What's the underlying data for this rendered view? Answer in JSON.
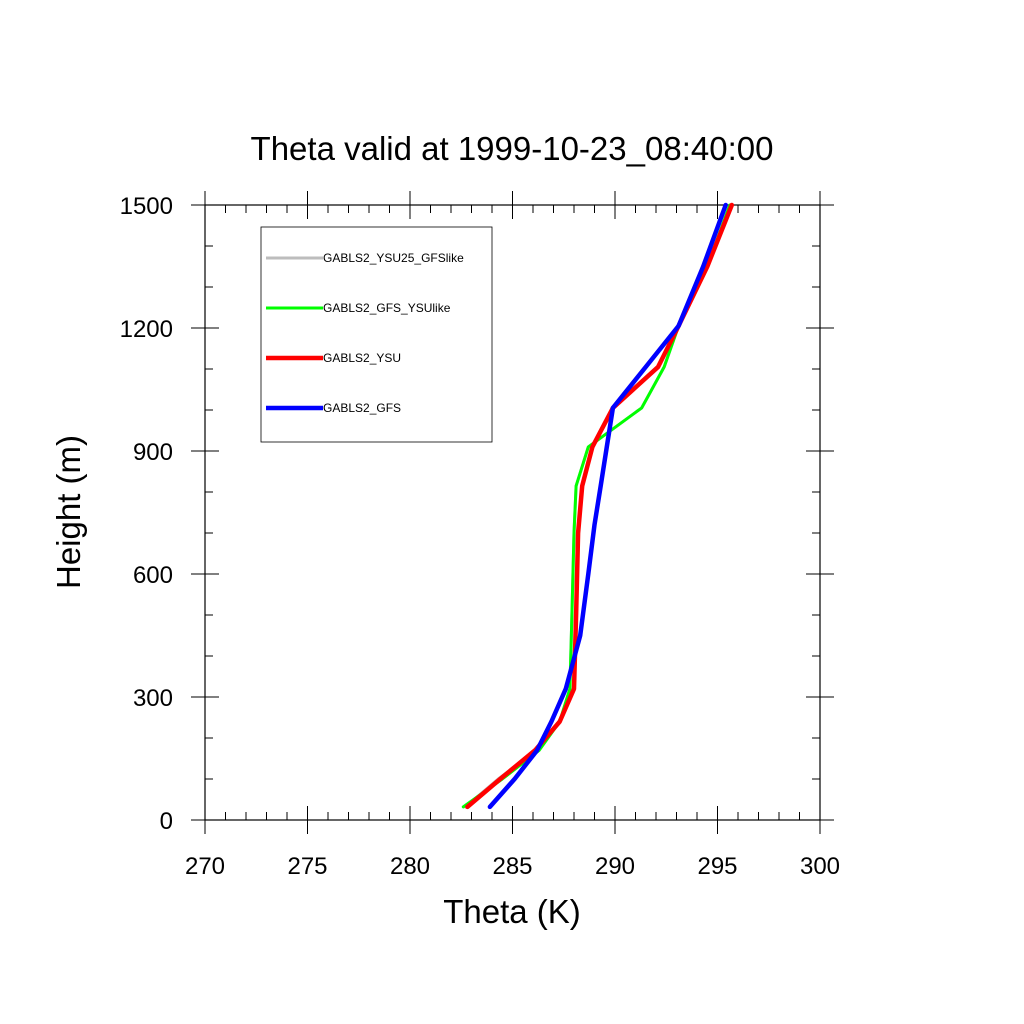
{
  "chart_data": {
    "type": "line",
    "title": "Theta valid at 1999-10-23_08:40:00",
    "xlabel": "Theta (K)",
    "ylabel": "Height (m)",
    "xlim": [
      270,
      300
    ],
    "ylim": [
      0,
      1500
    ],
    "x_ticks": [
      "270",
      "275",
      "280",
      "285",
      "290",
      "295",
      "300"
    ],
    "y_ticks": [
      "0",
      "300",
      "600",
      "900",
      "1200",
      "1500"
    ],
    "legend_position": "top-left, inside plot",
    "series": [
      {
        "name": "GABLS2_YSU25_GFSlike",
        "color": "#bdbdbd",
        "line_width": 3,
        "points": [
          [
            282.7,
            32
          ],
          [
            284.3,
            100
          ],
          [
            286.2,
            170
          ],
          [
            287.3,
            240
          ],
          [
            287.8,
            320
          ],
          [
            287.9,
            500
          ],
          [
            288.0,
            700
          ],
          [
            288.1,
            815
          ],
          [
            288.7,
            910
          ],
          [
            291.3,
            1005
          ],
          [
            292.4,
            1105
          ],
          [
            293.1,
            1205
          ],
          [
            294.5,
            1350
          ],
          [
            295.7,
            1500
          ]
        ]
      },
      {
        "name": "GABLS2_GFS_YSUlike",
        "color": "#00ff00",
        "line_width": 3,
        "points": [
          [
            282.6,
            32
          ],
          [
            284.5,
            100
          ],
          [
            286.3,
            170
          ],
          [
            287.3,
            240
          ],
          [
            287.8,
            320
          ],
          [
            287.9,
            500
          ],
          [
            288.0,
            700
          ],
          [
            288.1,
            815
          ],
          [
            288.7,
            910
          ],
          [
            291.3,
            1005
          ],
          [
            292.4,
            1105
          ],
          [
            293.1,
            1205
          ],
          [
            294.5,
            1350
          ],
          [
            295.6,
            1500
          ]
        ]
      },
      {
        "name": "GABLS2_YSU",
        "color": "#ff0000",
        "line_width": 4.5,
        "points": [
          [
            282.8,
            32
          ],
          [
            284.4,
            100
          ],
          [
            286.1,
            170
          ],
          [
            287.3,
            240
          ],
          [
            288.0,
            320
          ],
          [
            288.1,
            500
          ],
          [
            288.2,
            700
          ],
          [
            288.4,
            815
          ],
          [
            288.9,
            910
          ],
          [
            289.9,
            1005
          ],
          [
            292.1,
            1105
          ],
          [
            293.1,
            1205
          ],
          [
            294.5,
            1350
          ],
          [
            295.7,
            1500
          ]
        ]
      },
      {
        "name": "GABLS2_GFS",
        "color": "#0000ff",
        "line_width": 4.5,
        "points": [
          [
            283.9,
            32
          ],
          [
            285.1,
            100
          ],
          [
            286.2,
            170
          ],
          [
            286.9,
            240
          ],
          [
            287.6,
            320
          ],
          [
            288.3,
            450
          ],
          [
            288.7,
            600
          ],
          [
            289.0,
            720
          ],
          [
            289.3,
            815
          ],
          [
            289.6,
            910
          ],
          [
            289.9,
            1005
          ],
          [
            291.5,
            1105
          ],
          [
            293.1,
            1205
          ],
          [
            294.3,
            1350
          ],
          [
            295.4,
            1500
          ]
        ]
      }
    ]
  }
}
